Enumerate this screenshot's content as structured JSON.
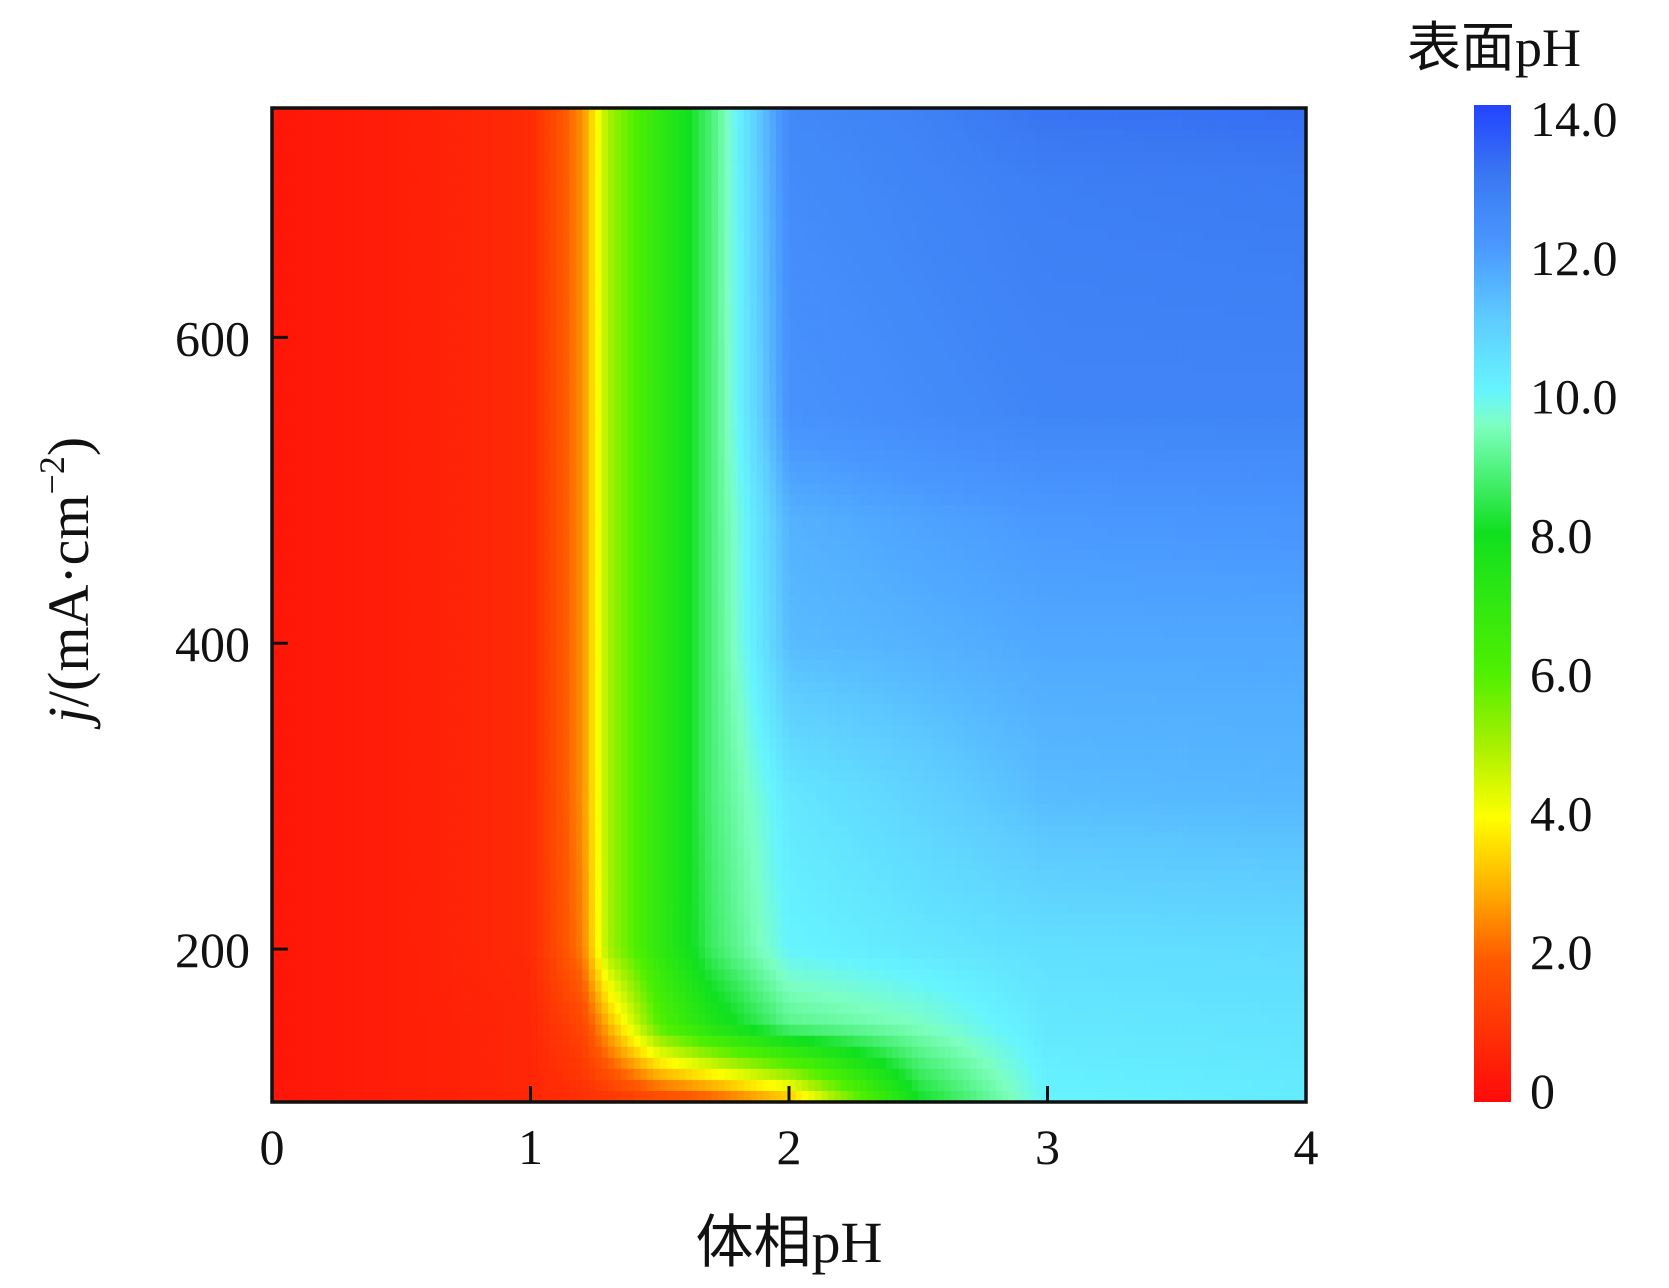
{
  "chart_data": {
    "type": "heatmap",
    "title": "",
    "xlabel": "体相pH",
    "ylabel_prefix": "j",
    "ylabel_main": "/(mA·cm",
    "ylabel_exp": "−2",
    "ylabel_suffix": ")",
    "xlim": [
      0,
      4
    ],
    "ylim": [
      100,
      750
    ],
    "x_ticks": [
      0,
      1,
      2,
      3,
      4
    ],
    "x_tick_labels": [
      "0",
      "1",
      "2",
      "3",
      "4"
    ],
    "y_ticks": [
      200,
      400,
      600
    ],
    "y_tick_labels": [
      "200",
      "400",
      "600"
    ],
    "grid": false,
    "colorbar": {
      "title": "表面pH",
      "range": [
        0,
        14
      ],
      "ticks": [
        0,
        2,
        4,
        6,
        8,
        10,
        12,
        14
      ],
      "tick_labels": [
        "0",
        "2.0",
        "4.0",
        "6.0",
        "8.0",
        "10.0",
        "12.0",
        "14.0"
      ],
      "colormap": [
        {
          "v": 0,
          "c": "#ff0a0a"
        },
        {
          "v": 2,
          "c": "#ff5a00"
        },
        {
          "v": 3,
          "c": "#ffb000"
        },
        {
          "v": 4,
          "c": "#ffff00"
        },
        {
          "v": 5,
          "c": "#a8f000"
        },
        {
          "v": 6,
          "c": "#50f000"
        },
        {
          "v": 8,
          "c": "#10e020"
        },
        {
          "v": 9.5,
          "c": "#7dffc0"
        },
        {
          "v": 10,
          "c": "#66f4ff"
        },
        {
          "v": 11,
          "c": "#5ecbff"
        },
        {
          "v": 12,
          "c": "#4a99ff"
        },
        {
          "v": 13,
          "c": "#3a78f2"
        },
        {
          "v": 14,
          "c": "#2244ff"
        }
      ]
    },
    "x": [
      0,
      0.5,
      1.0,
      1.2,
      1.3,
      1.5,
      1.7,
      2.0,
      2.5,
      3.0,
      4.0
    ],
    "y": [
      100,
      150,
      200,
      300,
      400,
      480,
      550,
      700,
      750
    ],
    "z": [
      [
        0.3,
        0.5,
        0.7,
        0.9,
        1.0,
        1.4,
        1.8,
        3.0,
        8.0,
        10.0,
        10.2
      ],
      [
        0.3,
        0.5,
        0.7,
        1.5,
        3.0,
        6.0,
        7.5,
        9.0,
        9.5,
        10.3,
        10.4
      ],
      [
        0.3,
        0.5,
        0.8,
        2.4,
        5.0,
        7.0,
        8.6,
        10.0,
        10.3,
        10.5,
        10.6
      ],
      [
        0.3,
        0.5,
        0.8,
        2.6,
        5.0,
        7.0,
        8.8,
        10.3,
        10.8,
        11.3,
        11.4
      ],
      [
        0.3,
        0.5,
        0.8,
        2.6,
        5.0,
        7.0,
        8.8,
        11.3,
        11.5,
        11.7,
        11.7
      ],
      [
        0.3,
        0.5,
        0.8,
        2.6,
        5.0,
        7.0,
        8.8,
        11.5,
        11.8,
        12.0,
        12.1
      ],
      [
        0.3,
        0.5,
        0.8,
        2.6,
        5.0,
        7.0,
        8.8,
        12.2,
        12.4,
        12.6,
        12.6
      ],
      [
        0.3,
        0.5,
        0.8,
        2.6,
        5.0,
        7.0,
        8.8,
        12.4,
        12.6,
        12.8,
        12.9
      ],
      [
        0.3,
        0.5,
        0.8,
        2.6,
        5.0,
        7.0,
        8.8,
        12.5,
        12.7,
        13.1,
        13.2
      ]
    ]
  }
}
